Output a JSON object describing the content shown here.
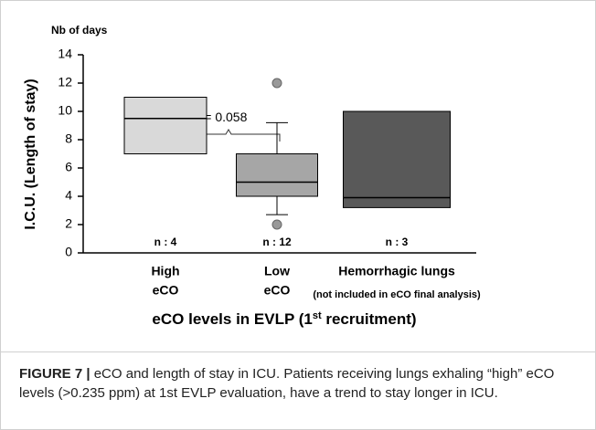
{
  "chart_data": {
    "type": "box",
    "y_unit_label": "Nb of days",
    "y_label": "I.C.U. (Length of stay)",
    "x_label_parts": [
      "eCO levels in EVLP (1",
      "st",
      " recruitment)"
    ],
    "categories": [
      [
        "High",
        "eCO"
      ],
      [
        "Low",
        "eCO"
      ],
      [
        "Hemorrhagic lungs",
        "(not included in eCO final analysis)"
      ]
    ],
    "n_labels": [
      "n : 4",
      "n : 12",
      "n : 3"
    ],
    "boxes": [
      {
        "q1": 7,
        "median": 9.5,
        "q3": 11,
        "color": "#d9d9d9"
      },
      {
        "q1": 4,
        "median": 5,
        "q3": 7,
        "whisker_low": 2.7,
        "whisker_high": 9.2,
        "outliers": [
          12,
          2
        ],
        "color": "#a6a6a6"
      },
      {
        "q1": 3.2,
        "median": 3.9,
        "q3": 10,
        "color": "#595959"
      }
    ],
    "annotation": {
      "symbol": "p",
      "text": "= 0.058"
    },
    "ylim": [
      0,
      14
    ],
    "yticks": [
      0,
      2,
      4,
      6,
      8,
      10,
      12,
      14
    ]
  },
  "caption": {
    "label": "FIGURE 7 |",
    "text": "eCO and length of stay in ICU. Patients receiving lungs exhaling “high” eCO levels (>0.235 ppm) at 1st EVLP evaluation, have a trend to stay longer in ICU."
  }
}
